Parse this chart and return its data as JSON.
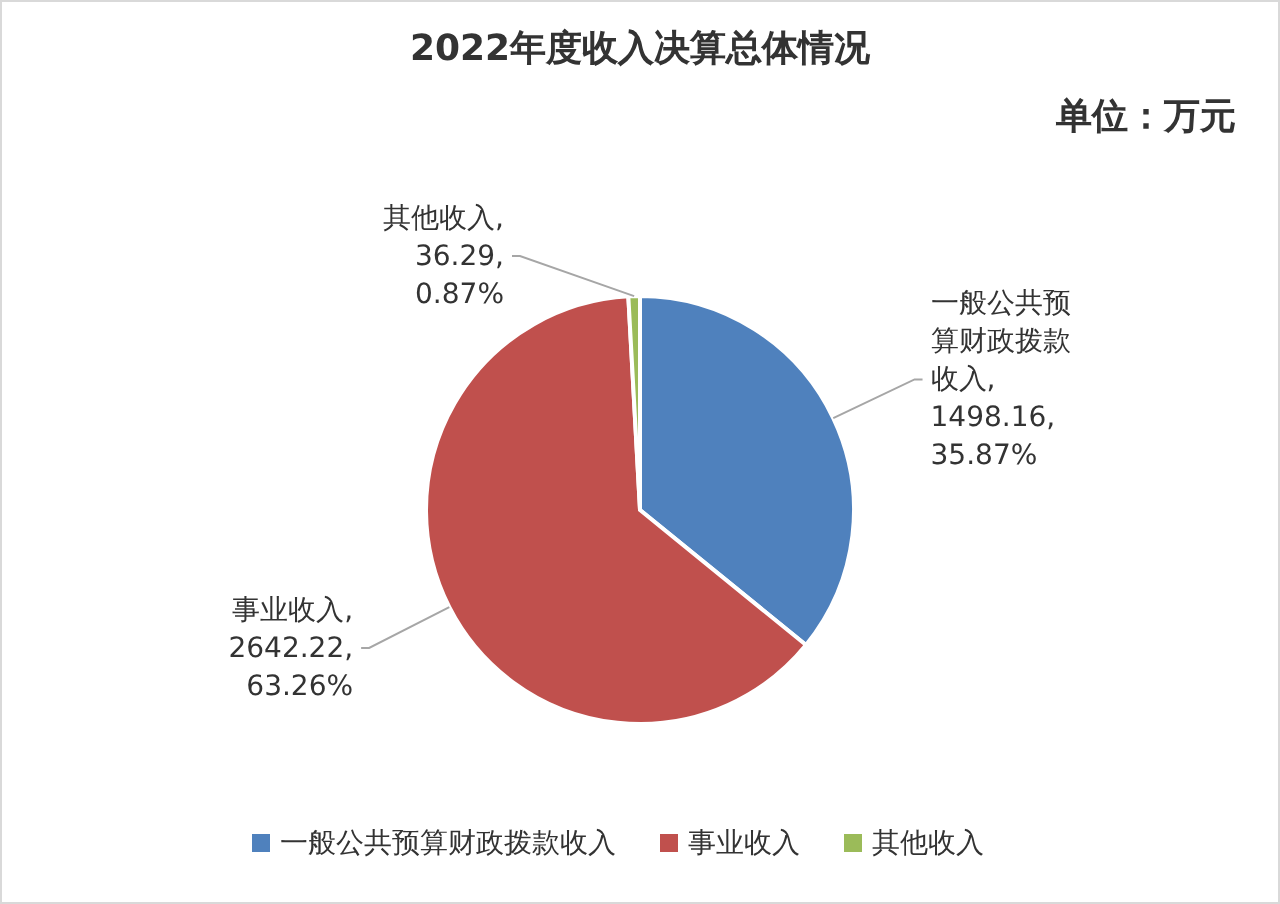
{
  "chart_data": {
    "type": "pie",
    "title": "2022年度收入决算总体情况",
    "annotations": [
      "单位：万元"
    ],
    "categories": [
      "一般公共预算财政拨款收入",
      "事业收入",
      "其他收入"
    ],
    "values": [
      1498.16,
      2642.22,
      36.29
    ],
    "colors": [
      "#4f81bd",
      "#c0504d",
      "#9bbb59"
    ],
    "value_labels": [
      "一般公共预算财政拨款收入, 1498.16, 35.87%",
      "事业收入, 2642.22, 63.26%",
      "其他收入, 36.29, 0.87%"
    ],
    "legend": "bottom"
  }
}
